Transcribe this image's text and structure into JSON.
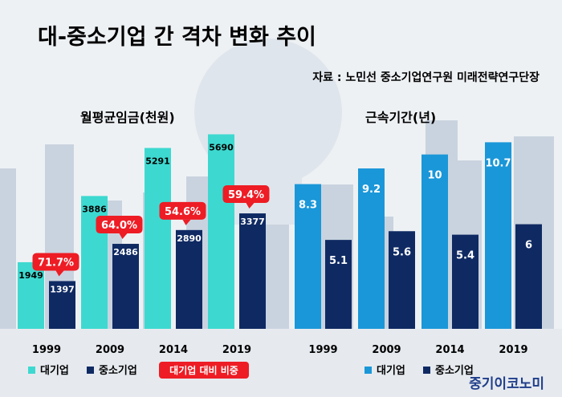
{
  "header": {
    "title": "대-중소기업 간 격차 변화 추이",
    "source": "자료 : 노민선 중소기업연구원 미래전략연구단장"
  },
  "chart_data": [
    {
      "type": "bar",
      "title": "월평균임금(천원)",
      "categories": [
        "1999",
        "2009",
        "2014",
        "2019"
      ],
      "series": [
        {
          "name": "대기업",
          "values": [
            1949,
            3886,
            5291,
            5690
          ],
          "color": "#3dd9d0"
        },
        {
          "name": "중소기업",
          "values": [
            1397,
            2486,
            2890,
            3377
          ],
          "color": "#0f2a63"
        }
      ],
      "ratio_labels": [
        "71.7%",
        "64.0%",
        "54.6%",
        "59.4%"
      ],
      "ratio_legend": "대기업 대비 비중",
      "ylim": [
        0,
        6100
      ]
    },
    {
      "type": "bar",
      "title": "근속기간(년)",
      "categories": [
        "1999",
        "2009",
        "2014",
        "2019"
      ],
      "series": [
        {
          "name": "대기업",
          "values": [
            8.3,
            9.2,
            10,
            10.7
          ],
          "labels": [
            "8.3",
            "9.2",
            "10",
            "10.7"
          ],
          "color": "#1a97d8"
        },
        {
          "name": "중소기업",
          "values": [
            5.1,
            5.6,
            5.4,
            6
          ],
          "labels": [
            "5.1",
            "5.6",
            "5.4",
            "6"
          ],
          "color": "#0f2a63"
        }
      ],
      "ylim": [
        0,
        11.5
      ]
    }
  ],
  "branding": {
    "logo_text": "중기이코노미"
  },
  "colors": {
    "ratio_badge": "#ee1c24",
    "title": "#000000"
  }
}
